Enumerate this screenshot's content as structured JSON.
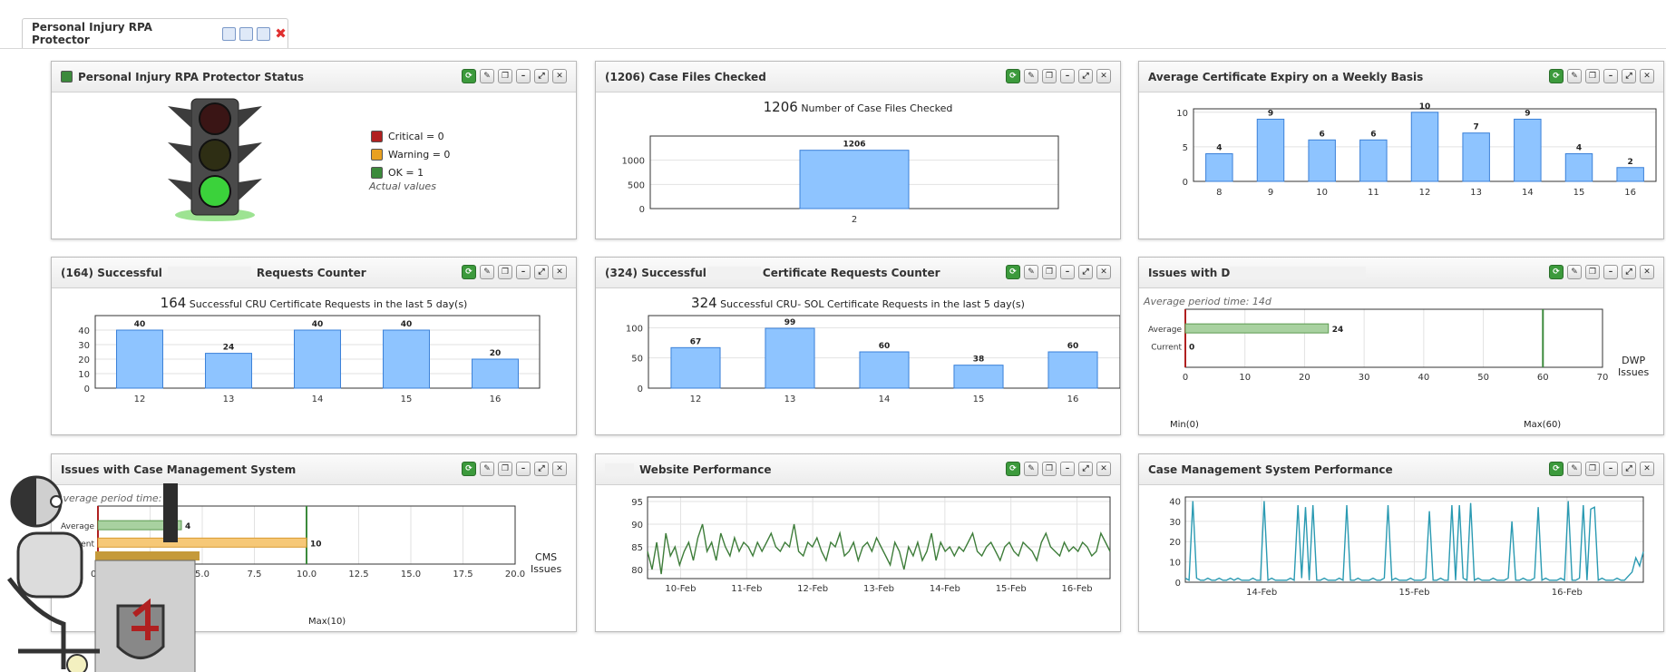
{
  "tab": {
    "title": "Personal Injury RPA Protector"
  },
  "colors": {
    "bar": "#8ec4ff",
    "bar_stroke": "#3a80d8",
    "green_line": "#3e7d3a",
    "teal_line": "#2a9ab2",
    "critical": "#b02020",
    "warning": "#e8a020",
    "ok": "#3c8a3c"
  },
  "status": {
    "title": "Personal Injury RPA Protector Status",
    "legend": [
      {
        "label": "Critical = 0",
        "color": "#b02020"
      },
      {
        "label": "Warning = 0",
        "color": "#e8a020"
      },
      {
        "label": "OK = 1",
        "color": "#3c8a3c"
      }
    ],
    "note": "Actual values",
    "active_light": "green"
  },
  "case_files": {
    "title": "(1206) Case Files Checked",
    "caption_num": "1206",
    "caption_text": "Number of Case Files Checked"
  },
  "cert_expiry": {
    "title": "Average Certificate Expiry on a Weekly Basis"
  },
  "cru_requests": {
    "title_prefix": "(164) Successful",
    "title_suffix": "Requests Counter",
    "caption_num": "164",
    "caption_text": "Successful CRU Certificate Requests in the last 5 day(s)"
  },
  "sol_requests": {
    "title_prefix": "(324) Successful",
    "title_suffix": "Certificate Requests Counter",
    "caption_num": "324",
    "caption_text": "Successful CRU- SOL Certificate Requests in the last 5 day(s)"
  },
  "dwp_issues": {
    "title_prefix": "Issues with D",
    "period": "Average period time: 14d",
    "avg_label": "Average",
    "cur_label": "Current",
    "avg_value": "24",
    "cur_value": "0",
    "unit_line1": "DWP",
    "unit_line2": "Issues",
    "min_label": "Min(0)",
    "max_label": "Max(60)"
  },
  "cms_issues": {
    "title": "Issues with Case Management System",
    "period": "Average period time: 14",
    "avg_label": "Average",
    "cur_label": "Current",
    "avg_value": "4",
    "cur_value": "10",
    "unit_line1": "CMS",
    "unit_line2": "Issues",
    "max_label": "Max(10)"
  },
  "website_perf": {
    "title": "Website Performance"
  },
  "cms_perf": {
    "title": "Case Management System Performance"
  },
  "chart_data": [
    {
      "id": "case_files",
      "type": "bar",
      "categories": [
        "2"
      ],
      "values": [
        1206
      ],
      "ylim": [
        0,
        1500
      ],
      "yticks": [
        0,
        500,
        1000
      ],
      "title": "1206 Number of Case Files Checked",
      "grid": true
    },
    {
      "id": "cert_expiry",
      "type": "bar",
      "categories": [
        "8",
        "9",
        "10",
        "11",
        "12",
        "13",
        "14",
        "15",
        "16"
      ],
      "values": [
        4,
        9,
        6,
        6,
        10,
        7,
        9,
        4,
        2
      ],
      "ylim": [
        0,
        10.5
      ],
      "yticks": [
        0,
        5,
        10
      ],
      "grid": true
    },
    {
      "id": "cru_requests",
      "type": "bar",
      "categories": [
        "12",
        "13",
        "14",
        "15",
        "16"
      ],
      "values": [
        40,
        24,
        40,
        40,
        20
      ],
      "ylim": [
        0,
        50
      ],
      "yticks": [
        0,
        10,
        20,
        30,
        40
      ],
      "title": "164 Successful CRU Certificate Requests in the last 5 day(s)",
      "grid": true
    },
    {
      "id": "sol_requests",
      "type": "bar",
      "categories": [
        "12",
        "13",
        "14",
        "15",
        "16"
      ],
      "values": [
        67,
        99,
        60,
        38,
        60
      ],
      "ylim": [
        0,
        120
      ],
      "yticks": [
        0,
        50,
        100
      ],
      "title": "324 Successful CRU- SOL Certificate Requests in the last 5 day(s)",
      "grid": true
    },
    {
      "id": "dwp_issues",
      "type": "bar",
      "orientation": "horizontal",
      "categories": [
        "Average",
        "Current"
      ],
      "values": [
        24,
        0
      ],
      "xlim": [
        0,
        70
      ],
      "xticks": [
        0,
        10,
        20,
        30,
        40,
        50,
        60,
        70
      ],
      "max_marker": 60,
      "grid": true
    },
    {
      "id": "cms_issues",
      "type": "bar",
      "orientation": "horizontal",
      "categories": [
        "Average",
        "Current"
      ],
      "values": [
        4,
        10
      ],
      "xlim": [
        0,
        20
      ],
      "xticks": [
        "0.0",
        "2.5",
        "5.0",
        "7.5",
        "10.0",
        "12.5",
        "15.0",
        "17.5",
        "20.0"
      ],
      "max_marker": 10,
      "grid": true
    },
    {
      "id": "website_perf",
      "type": "line",
      "x_ticks": [
        "10-Feb",
        "11-Feb",
        "12-Feb",
        "13-Feb",
        "14-Feb",
        "15-Feb",
        "16-Feb"
      ],
      "ylim": [
        78,
        96
      ],
      "yticks": [
        80,
        85,
        90,
        95
      ],
      "series": [
        {
          "values": [
            84,
            80,
            86,
            79,
            88,
            83,
            85,
            81,
            84,
            86,
            82,
            87,
            90,
            84,
            86,
            82,
            88,
            85,
            83,
            87,
            84,
            86,
            85,
            83,
            86,
            84,
            86,
            88,
            85,
            84,
            86,
            85,
            90,
            84,
            83,
            86,
            85,
            87,
            84,
            82,
            86,
            85,
            88,
            83,
            84,
            86,
            82,
            85,
            86,
            84,
            87,
            85,
            83,
            81,
            86,
            84,
            80,
            85,
            83,
            86,
            82,
            84,
            88,
            82,
            86,
            84,
            85,
            83,
            85,
            84,
            86,
            88,
            84,
            83,
            85,
            86,
            84,
            82,
            85,
            86,
            84,
            83,
            86,
            85,
            84,
            82,
            86,
            88,
            85,
            84,
            83,
            86,
            84,
            85,
            84,
            86,
            85,
            83,
            84,
            88,
            86,
            84
          ]
        }
      ],
      "grid": true
    },
    {
      "id": "cms_perf",
      "type": "line",
      "x_ticks": [
        "14-Feb",
        "15-Feb",
        "16-Feb"
      ],
      "ylim": [
        0,
        42
      ],
      "yticks": [
        0,
        10,
        20,
        30,
        40
      ],
      "series": [
        {
          "values": [
            2,
            1,
            40,
            2,
            1,
            1,
            2,
            1,
            1,
            2,
            1,
            1,
            2,
            1,
            2,
            1,
            1,
            1,
            2,
            1,
            1,
            40,
            1,
            2,
            1,
            1,
            1,
            1,
            2,
            1,
            38,
            2,
            37,
            1,
            38,
            1,
            1,
            2,
            1,
            1,
            1,
            2,
            1,
            38,
            1,
            1,
            2,
            1,
            1,
            1,
            2,
            1,
            1,
            2,
            38,
            1,
            2,
            1,
            1,
            1,
            2,
            1,
            1,
            1,
            2,
            35,
            1,
            1,
            2,
            1,
            1,
            38,
            1,
            38,
            2,
            1,
            39,
            1,
            2,
            1,
            1,
            1,
            2,
            1,
            1,
            1,
            2,
            30,
            1,
            1,
            2,
            1,
            1,
            2,
            37,
            1,
            2,
            1,
            1,
            1,
            2,
            1,
            40,
            1,
            1,
            2,
            38,
            1,
            36,
            37,
            1,
            2,
            1,
            1,
            1,
            2,
            1,
            1,
            3,
            5,
            12,
            8,
            15
          ]
        }
      ],
      "grid": true
    }
  ]
}
